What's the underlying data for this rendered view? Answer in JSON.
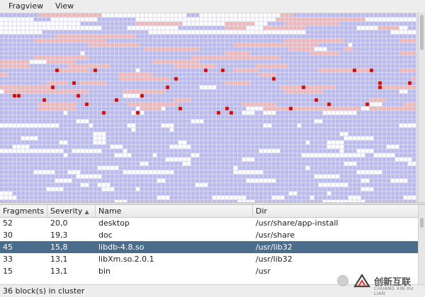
{
  "menubar": {
    "items": [
      "Fragview",
      "View"
    ]
  },
  "fragmap": {
    "colors": {
      "free": "#ffffff",
      "used": "#b9b9ee",
      "fragmented": "#f0b6b6",
      "selected_cluster": "#cc0a0a",
      "gridline": "#dcdcee"
    }
  },
  "table": {
    "columns": [
      {
        "label": "Fragments"
      },
      {
        "label": "Severity",
        "sort_icon": "sort-ascending-icon",
        "sort_glyph": "▲"
      },
      {
        "label": "Name"
      },
      {
        "label": "Dir"
      }
    ],
    "rows": [
      {
        "fragments": "52",
        "severity": "20,0",
        "name": "desktop",
        "dir": "/usr/share/app-install",
        "selected": false
      },
      {
        "fragments": "30",
        "severity": "19,3",
        "name": "doc",
        "dir": "/usr/share",
        "selected": false
      },
      {
        "fragments": "45",
        "severity": "15,8",
        "name": "libdb-4.8.so",
        "dir": "/usr/lib32",
        "selected": true
      },
      {
        "fragments": "33",
        "severity": "13,1",
        "name": "libXm.so.2.0.1",
        "dir": "/usr/lib32",
        "selected": false
      },
      {
        "fragments": "15",
        "severity": "13,1",
        "name": "bin",
        "dir": "/usr",
        "selected": false
      }
    ]
  },
  "status": {
    "text": "36 block(s) in cluster"
  },
  "watermark": {
    "text": "创新互联",
    "subtext": "CHUANG XIN HU LIAN",
    "logo_icon": "chuangxin-logo-icon"
  }
}
